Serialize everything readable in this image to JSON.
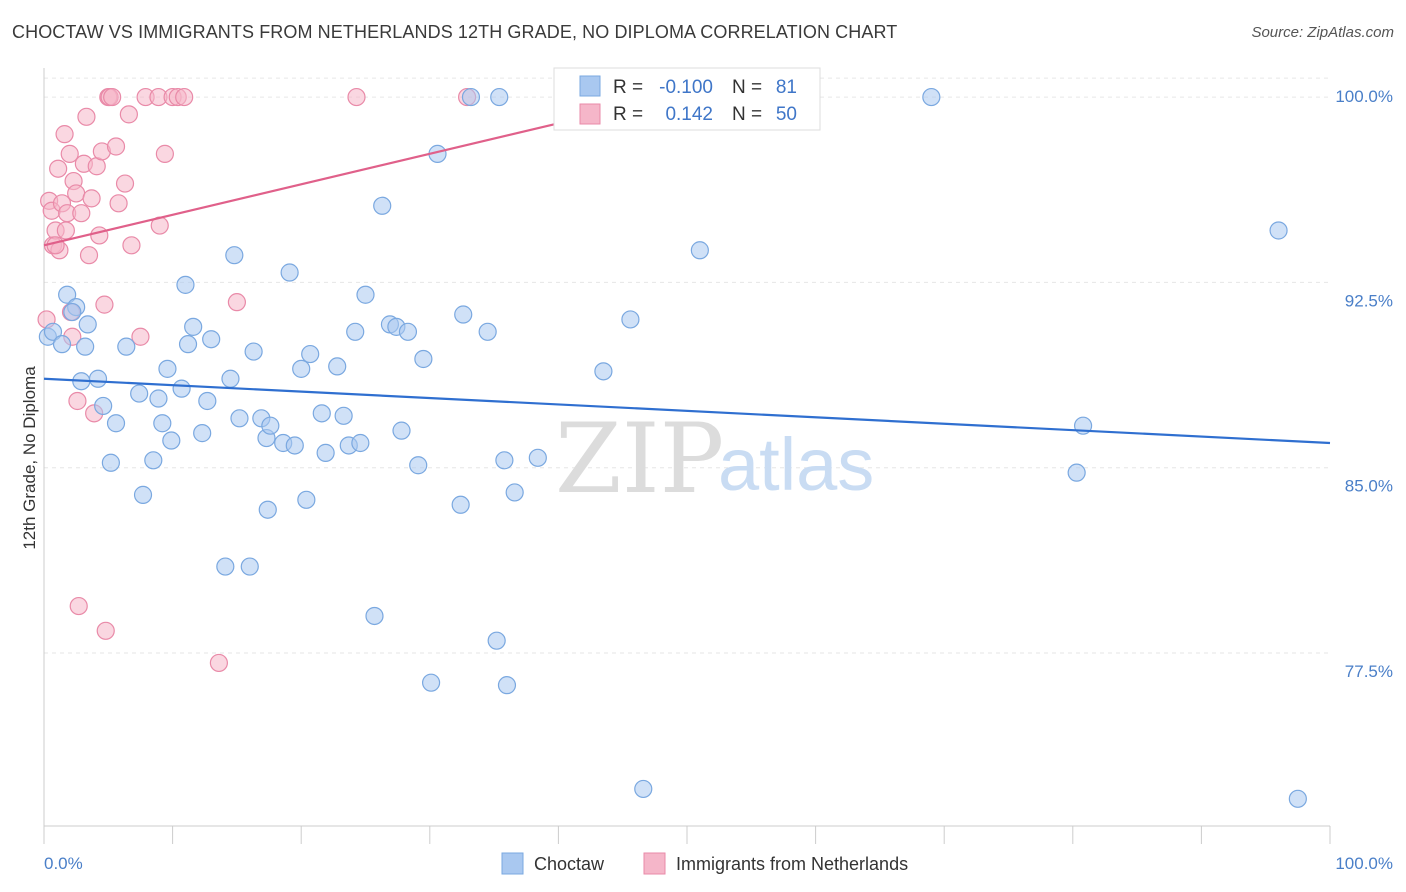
{
  "title": "CHOCTAW VS IMMIGRANTS FROM NETHERLANDS 12TH GRADE, NO DIPLOMA CORRELATION CHART",
  "source": "Source: ZipAtlas.com",
  "watermark": {
    "zip": "ZIP",
    "atlas": "atlas"
  },
  "colors": {
    "choctaw_fill": "#a9c8f0",
    "choctaw_stroke": "#7aa8e0",
    "choctaw_line": "#2f6fd0",
    "neth_fill": "#f5b6c9",
    "neth_stroke": "#e98aa8",
    "neth_line": "#e0608a",
    "grid": "#e6e6e6",
    "axis_text": "#4a7fc8"
  },
  "stats": {
    "row1": {
      "r_label": "R =",
      "r_value": "-0.100",
      "n_label": "N =",
      "n_value": "81"
    },
    "row2": {
      "r_label": "R =",
      "r_value": "0.142",
      "n_label": "N =",
      "n_value": "50"
    }
  },
  "chart_data": {
    "type": "scatter",
    "title": "CHOCTAW VS IMMIGRANTS FROM NETHERLANDS 12TH GRADE, NO DIPLOMA CORRELATION CHART",
    "xlabel": "",
    "ylabel": "12th Grade, No Diploma",
    "xlim": [
      0,
      100
    ],
    "ylim": [
      70.5,
      101.5
    ],
    "x_tick_labels": [
      "0.0%",
      "100.0%"
    ],
    "y_ticks": [
      100.0,
      92.5,
      85.0,
      77.5
    ],
    "y_tick_labels": [
      "100.0%",
      "92.5%",
      "85.0%",
      "77.5%"
    ],
    "grid": true,
    "legend_position": "bottom-center",
    "series": [
      {
        "name": "Choctaw",
        "trend": {
          "x": [
            0,
            100
          ],
          "y": [
            88.6,
            86.0
          ]
        },
        "points": [
          [
            0.3,
            90.3
          ],
          [
            0.7,
            90.5
          ],
          [
            1.4,
            90.0
          ],
          [
            1.8,
            92.0
          ],
          [
            2.5,
            91.5
          ],
          [
            2.2,
            91.3
          ],
          [
            3.2,
            89.9
          ],
          [
            4.2,
            88.6
          ],
          [
            3.4,
            90.8
          ],
          [
            4.6,
            87.5
          ],
          [
            5.2,
            85.2
          ],
          [
            5.6,
            86.8
          ],
          [
            6.4,
            89.9
          ],
          [
            7.4,
            88.0
          ],
          [
            7.7,
            83.9
          ],
          [
            8.5,
            85.3
          ],
          [
            8.9,
            87.8
          ],
          [
            9.2,
            86.8
          ],
          [
            9.6,
            89.0
          ],
          [
            9.9,
            86.1
          ],
          [
            10.7,
            88.2
          ],
          [
            11.0,
            92.4
          ],
          [
            11.6,
            90.7
          ],
          [
            12.3,
            86.4
          ],
          [
            12.7,
            87.7
          ],
          [
            13.0,
            90.2
          ],
          [
            14.1,
            81.0
          ],
          [
            14.5,
            88.6
          ],
          [
            14.8,
            93.6
          ],
          [
            15.2,
            87.0
          ],
          [
            16.0,
            81.0
          ],
          [
            16.3,
            89.7
          ],
          [
            16.9,
            87.0
          ],
          [
            17.3,
            86.2
          ],
          [
            17.6,
            86.7
          ],
          [
            17.4,
            83.3
          ],
          [
            18.6,
            86.0
          ],
          [
            19.1,
            92.9
          ],
          [
            19.5,
            85.9
          ],
          [
            20.0,
            89.0
          ],
          [
            20.4,
            83.7
          ],
          [
            20.7,
            89.6
          ],
          [
            21.6,
            87.2
          ],
          [
            21.9,
            85.6
          ],
          [
            22.8,
            89.1
          ],
          [
            23.3,
            87.1
          ],
          [
            23.7,
            85.9
          ],
          [
            24.2,
            90.5
          ],
          [
            24.6,
            86.0
          ],
          [
            25.0,
            92.0
          ],
          [
            25.7,
            79.0
          ],
          [
            26.3,
            95.6
          ],
          [
            26.9,
            90.8
          ],
          [
            27.4,
            90.7
          ],
          [
            27.8,
            86.5
          ],
          [
            28.3,
            90.5
          ],
          [
            29.1,
            85.1
          ],
          [
            29.5,
            89.4
          ],
          [
            30.1,
            76.3
          ],
          [
            30.6,
            97.7
          ],
          [
            32.4,
            83.5
          ],
          [
            32.6,
            91.2
          ],
          [
            33.2,
            100.0
          ],
          [
            34.5,
            90.5
          ],
          [
            35.2,
            78.0
          ],
          [
            35.4,
            100.0
          ],
          [
            35.8,
            85.3
          ],
          [
            36.0,
            76.2
          ],
          [
            36.6,
            84.0
          ],
          [
            38.4,
            85.4
          ],
          [
            43.5,
            88.9
          ],
          [
            45.6,
            91.0
          ],
          [
            46.6,
            72.0
          ],
          [
            51.0,
            93.8
          ],
          [
            69.0,
            100.0
          ],
          [
            80.3,
            84.8
          ],
          [
            80.8,
            86.7
          ],
          [
            96.0,
            94.6
          ],
          [
            97.5,
            71.6
          ],
          [
            2.9,
            88.5
          ],
          [
            11.2,
            90.0
          ]
        ]
      },
      {
        "name": "Immigrants from Netherlands",
        "trend": {
          "x": [
            0,
            40.5
          ],
          "y": [
            94.0,
            99.0
          ]
        },
        "points": [
          [
            0.2,
            91.0
          ],
          [
            0.4,
            95.8
          ],
          [
            0.6,
            95.4
          ],
          [
            0.7,
            94.0
          ],
          [
            0.9,
            94.6
          ],
          [
            1.1,
            97.1
          ],
          [
            1.2,
            93.8
          ],
          [
            1.4,
            95.7
          ],
          [
            1.6,
            98.5
          ],
          [
            1.7,
            94.6
          ],
          [
            1.8,
            95.3
          ],
          [
            2.0,
            97.7
          ],
          [
            2.1,
            91.3
          ],
          [
            2.2,
            90.3
          ],
          [
            2.3,
            96.6
          ],
          [
            2.5,
            96.1
          ],
          [
            2.6,
            87.7
          ],
          [
            2.7,
            79.4
          ],
          [
            2.9,
            95.3
          ],
          [
            3.1,
            97.3
          ],
          [
            3.3,
            99.2
          ],
          [
            3.5,
            93.6
          ],
          [
            3.7,
            95.9
          ],
          [
            3.9,
            87.2
          ],
          [
            4.1,
            97.2
          ],
          [
            4.3,
            94.4
          ],
          [
            4.5,
            97.8
          ],
          [
            4.7,
            91.6
          ],
          [
            4.8,
            78.4
          ],
          [
            5.0,
            100.0
          ],
          [
            5.1,
            100.0
          ],
          [
            5.3,
            100.0
          ],
          [
            5.6,
            98.0
          ],
          [
            5.8,
            95.7
          ],
          [
            6.3,
            96.5
          ],
          [
            6.6,
            99.3
          ],
          [
            6.8,
            94.0
          ],
          [
            7.5,
            90.3
          ],
          [
            7.9,
            100.0
          ],
          [
            8.9,
            100.0
          ],
          [
            9.0,
            94.8
          ],
          [
            9.4,
            97.7
          ],
          [
            10.0,
            100.0
          ],
          [
            10.4,
            100.0
          ],
          [
            10.9,
            100.0
          ],
          [
            13.6,
            77.1
          ],
          [
            15.0,
            91.7
          ],
          [
            24.3,
            100.0
          ],
          [
            32.9,
            100.0
          ],
          [
            0.9,
            94.0
          ]
        ]
      }
    ]
  },
  "legend": {
    "item1": "Choctaw",
    "item2": "Immigrants from Netherlands"
  }
}
